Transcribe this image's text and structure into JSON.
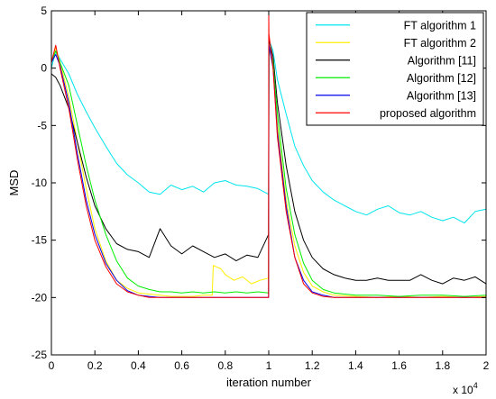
{
  "chart_data": {
    "type": "line",
    "xlabel": "iteration number",
    "ylabel": "MSD",
    "x_multiplier_label": "x 10",
    "x_multiplier_exp": "4",
    "xlim": [
      0,
      20000
    ],
    "ylim": [
      -25,
      5
    ],
    "x_ticks": [
      0,
      2000,
      4000,
      6000,
      8000,
      10000,
      12000,
      14000,
      16000,
      18000,
      20000
    ],
    "x_tick_labels": [
      "0",
      "0.2",
      "0.4",
      "0.6",
      "0.8",
      "1",
      "1.2",
      "1.4",
      "1.6",
      "1.8",
      "2"
    ],
    "y_ticks": [
      5,
      0,
      -5,
      -10,
      -15,
      -20,
      -25
    ],
    "y_tick_labels": [
      "5",
      "0",
      "-5",
      "-10",
      "-15",
      "-20",
      "-25"
    ],
    "legend_position": "top-right",
    "series": [
      {
        "name": "FT algorithm 1",
        "color": "#00e5ee",
        "x": [
          0,
          200,
          400,
          800,
          1200,
          1600,
          2000,
          2500,
          3000,
          3500,
          4000,
          4500,
          5000,
          5500,
          6000,
          6500,
          7000,
          7500,
          8000,
          8500,
          9000,
          9500,
          9990,
          10010,
          10200,
          10400,
          10800,
          11200,
          11600,
          12000,
          12500,
          13000,
          13500,
          14000,
          14500,
          15000,
          15500,
          16000,
          16500,
          17000,
          17500,
          18000,
          18500,
          19000,
          19500,
          20000
        ],
        "y": [
          0,
          1.5,
          0.8,
          -0.5,
          -2.3,
          -3.8,
          -5.2,
          -6.8,
          -8.3,
          -9.3,
          -10.0,
          -10.8,
          -11.0,
          -10.2,
          -10.6,
          -10.3,
          -10.8,
          -10.0,
          -9.8,
          -10.2,
          -10.3,
          -10.5,
          -11.0,
          2.5,
          1.5,
          -1.0,
          -4.0,
          -6.8,
          -8.5,
          -9.8,
          -10.8,
          -11.5,
          -12.0,
          -12.5,
          -12.8,
          -12.3,
          -12.0,
          -12.6,
          -12.8,
          -12.5,
          -13.0,
          -13.3,
          -13.0,
          -13.5,
          -12.5,
          -12.3
        ]
      },
      {
        "name": "FT algorithm 2",
        "color": "#ffee00",
        "x": [
          0,
          200,
          400,
          800,
          1200,
          1600,
          2000,
          2500,
          3000,
          3500,
          4000,
          4500,
          5000,
          5500,
          6000,
          6500,
          7000,
          7400,
          7450,
          7800,
          8000,
          8400,
          8800,
          9200,
          9600,
          9990,
          10010,
          10200,
          10400,
          10800,
          11200,
          11600,
          12000,
          12500,
          13000,
          14000,
          15000,
          16000,
          17000,
          18000,
          19000,
          20000
        ],
        "y": [
          0.5,
          1.8,
          0.5,
          -2.5,
          -6.5,
          -10.5,
          -14.0,
          -16.8,
          -18.5,
          -19.2,
          -19.6,
          -19.7,
          -19.8,
          -19.9,
          -19.9,
          -19.9,
          -19.8,
          -19.8,
          -17.2,
          -17.5,
          -18.0,
          -18.5,
          -18.2,
          -18.8,
          -18.5,
          -18.3,
          2.0,
          0.0,
          -5.0,
          -11.5,
          -15.5,
          -17.8,
          -19.0,
          -19.5,
          -19.8,
          -19.9,
          -20.0,
          -19.9,
          -20.0,
          -19.9,
          -20.0,
          -19.9
        ]
      },
      {
        "name": "Algorithm [11]",
        "color": "#000000",
        "x": [
          0,
          200,
          400,
          800,
          1200,
          1600,
          2000,
          2500,
          3000,
          3500,
          4000,
          4500,
          5000,
          5500,
          6000,
          6500,
          7000,
          7500,
          8000,
          8500,
          9000,
          9500,
          9990,
          10010,
          10200,
          10400,
          10800,
          11200,
          11600,
          12000,
          12500,
          13000,
          13500,
          14000,
          14500,
          15000,
          15500,
          16000,
          16500,
          17000,
          17500,
          18000,
          18500,
          19000,
          19500,
          20000
        ],
        "y": [
          -0.5,
          -0.8,
          -1.5,
          -3.5,
          -6.5,
          -9.5,
          -12.0,
          -14.0,
          -15.3,
          -15.8,
          -16.0,
          -16.5,
          -14.0,
          -15.5,
          -16.2,
          -15.5,
          -16.0,
          -16.5,
          -16.2,
          -16.8,
          -16.3,
          -16.5,
          -14.5,
          2.5,
          1.0,
          -3.0,
          -8.5,
          -12.5,
          -15.0,
          -16.5,
          -17.5,
          -18.0,
          -18.3,
          -18.5,
          -18.5,
          -18.3,
          -18.5,
          -18.5,
          -18.5,
          -18.0,
          -18.5,
          -18.8,
          -18.3,
          -18.5,
          -18.2,
          -18.8
        ]
      },
      {
        "name": "Algorithm [12]",
        "color": "#00ee00",
        "x": [
          0,
          200,
          400,
          800,
          1200,
          1600,
          2000,
          2500,
          3000,
          3500,
          4000,
          4500,
          5000,
          5500,
          6000,
          6500,
          7000,
          7500,
          8000,
          8500,
          9000,
          9500,
          9990,
          10010,
          10200,
          10400,
          10800,
          11200,
          11600,
          12000,
          12500,
          13000,
          14000,
          15000,
          16000,
          17000,
          18000,
          19000,
          20000
        ],
        "y": [
          0.5,
          1.5,
          0.5,
          -1.5,
          -5.0,
          -8.5,
          -11.5,
          -14.5,
          -16.8,
          -18.3,
          -19.0,
          -19.3,
          -19.5,
          -19.5,
          -19.6,
          -19.5,
          -19.6,
          -19.5,
          -19.6,
          -19.5,
          -19.6,
          -19.5,
          -19.6,
          2.0,
          0.5,
          -4.0,
          -10.5,
          -14.5,
          -17.0,
          -18.5,
          -19.3,
          -19.6,
          -19.8,
          -19.8,
          -19.9,
          -19.8,
          -19.8,
          -19.9,
          -19.8
        ]
      },
      {
        "name": "Algorithm [13]",
        "color": "#0000ee",
        "x": [
          0,
          200,
          400,
          800,
          1200,
          1600,
          2000,
          2500,
          3000,
          3500,
          4000,
          4500,
          5000,
          6000,
          7000,
          8000,
          9000,
          9990,
          10010,
          10200,
          10400,
          10800,
          11200,
          11600,
          12000,
          12500,
          13000,
          14000,
          15000,
          16000,
          17000,
          18000,
          19000,
          20000
        ],
        "y": [
          0.5,
          1.2,
          0.2,
          -3.0,
          -7.5,
          -11.5,
          -14.5,
          -17.0,
          -18.5,
          -19.4,
          -19.8,
          -19.9,
          -20.0,
          -20.0,
          -20.0,
          -20.0,
          -20.0,
          -20.0,
          2.0,
          0.0,
          -5.5,
          -12.0,
          -16.5,
          -18.5,
          -19.5,
          -19.8,
          -20.0,
          -20.0,
          -20.0,
          -20.0,
          -20.0,
          -20.0,
          -20.0,
          -20.0
        ]
      },
      {
        "name": "proposed algorithm",
        "color": "#ff0000",
        "x": [
          0,
          200,
          400,
          800,
          1200,
          1600,
          2000,
          2500,
          3000,
          3500,
          4000,
          4500,
          5000,
          6000,
          7000,
          8000,
          9000,
          9990,
          10000,
          10010,
          10200,
          10400,
          10800,
          11200,
          11600,
          12000,
          12500,
          13000,
          14000,
          15000,
          16000,
          17000,
          18000,
          19000,
          20000
        ],
        "y": [
          0.5,
          2.0,
          0.0,
          -3.5,
          -8.0,
          -12.0,
          -15.0,
          -17.3,
          -18.8,
          -19.5,
          -19.8,
          -20.0,
          -20.0,
          -20.0,
          -20.0,
          -20.0,
          -20.0,
          -20.0,
          5.0,
          3.0,
          0.0,
          -6.0,
          -12.5,
          -16.5,
          -18.8,
          -19.6,
          -19.9,
          -20.0,
          -20.0,
          -20.0,
          -20.0,
          -20.0,
          -20.0,
          -20.0,
          -20.0
        ]
      }
    ]
  }
}
